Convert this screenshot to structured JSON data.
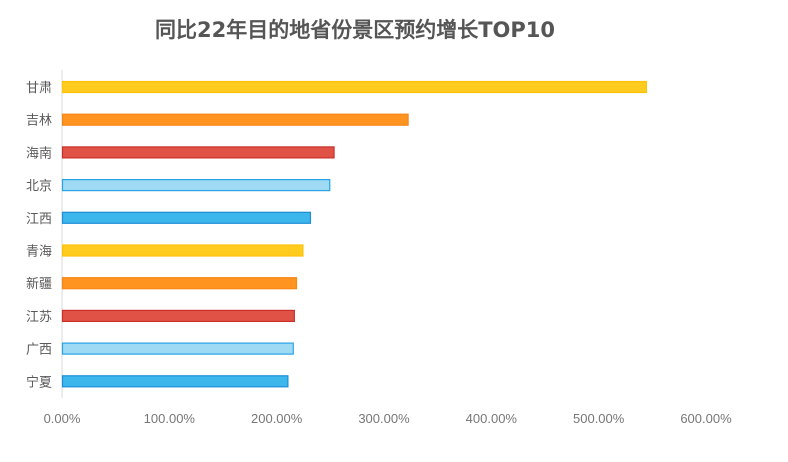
{
  "chart_data": {
    "type": "bar",
    "orientation": "horizontal",
    "title": "同比22年目的地省份景区预约增长TOP10",
    "xlabel": "",
    "ylabel": "",
    "xlim": [
      0,
      6
    ],
    "grid": false,
    "categories": [
      "甘肃",
      "吉林",
      "海南",
      "北京",
      "江西",
      "青海",
      "新疆",
      "江苏",
      "广西",
      "宁夏"
    ],
    "values": [
      5.44,
      3.22,
      2.53,
      2.49,
      2.31,
      2.24,
      2.18,
      2.16,
      2.15,
      2.1
    ],
    "colors": [
      "#FFCB1F",
      "#FF9421",
      "#E05246",
      "#9FDAF5",
      "#3CB6EB",
      "#FFCB1F",
      "#FF9421",
      "#E05246",
      "#9FDAF5",
      "#3CB6EB"
    ],
    "stroke_colors": [
      "#FFC20A",
      "#F7861A",
      "#C9302A",
      "#2AA3E6",
      "#1E8FD6",
      "#FFC20A",
      "#F7861A",
      "#C9302A",
      "#2AA3E6",
      "#1E8FD6"
    ],
    "x_tick_labels": [
      "0.00%",
      "100.00%",
      "200.00%",
      "300.00%",
      "400.00%",
      "500.00%",
      "600.00%"
    ]
  }
}
